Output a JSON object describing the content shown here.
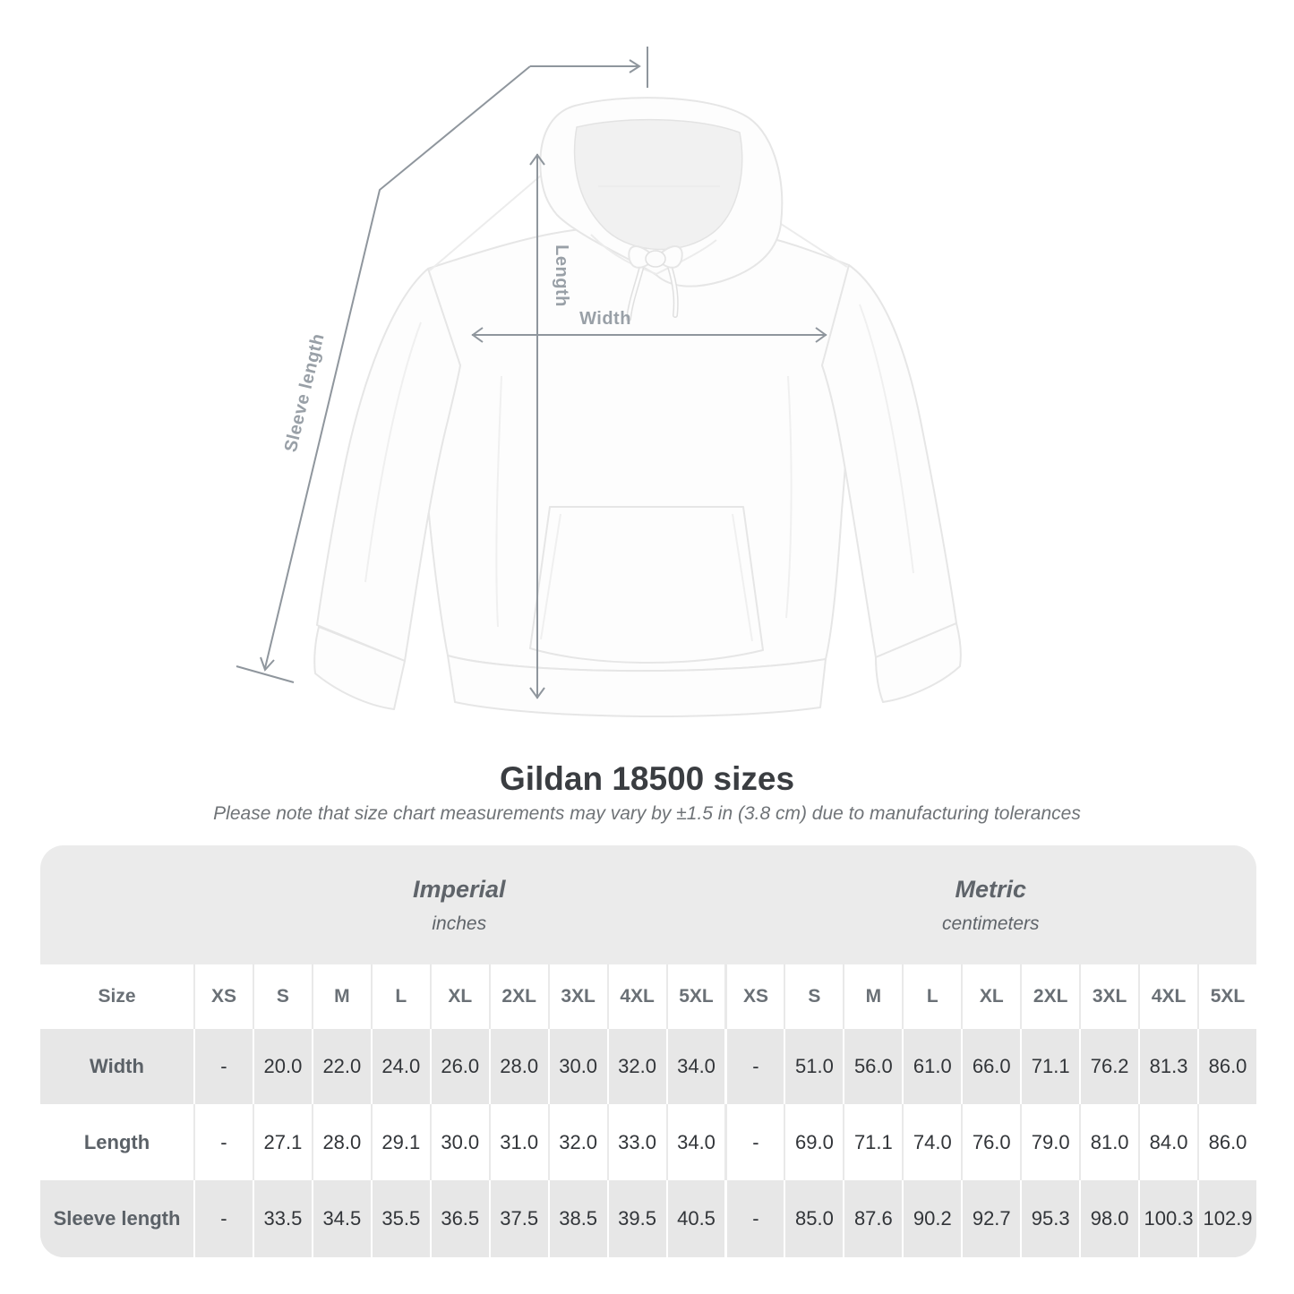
{
  "header": {
    "title": "Gildan 18500 sizes",
    "note": "Please note that size chart measurements may vary by ±1.5 in (3.8 cm) due to manufacturing tolerances"
  },
  "diagram": {
    "length_label": "Length",
    "width_label": "Width",
    "sleeve_length_label": "Sleeve length"
  },
  "table": {
    "size_label": "Size",
    "groups": [
      {
        "name": "Imperial",
        "unit": "inches"
      },
      {
        "name": "Metric",
        "unit": "centimeters"
      }
    ],
    "sizes": [
      "XS",
      "S",
      "M",
      "L",
      "XL",
      "2XL",
      "3XL",
      "4XL",
      "5XL"
    ],
    "rows": [
      {
        "label": "Width",
        "imperial": [
          "-",
          "20.0",
          "22.0",
          "24.0",
          "26.0",
          "28.0",
          "30.0",
          "32.0",
          "34.0"
        ],
        "metric": [
          "-",
          "51.0",
          "56.0",
          "61.0",
          "66.0",
          "71.1",
          "76.2",
          "81.3",
          "86.0"
        ]
      },
      {
        "label": "Length",
        "imperial": [
          "-",
          "27.1",
          "28.0",
          "29.1",
          "30.0",
          "31.0",
          "32.0",
          "33.0",
          "34.0"
        ],
        "metric": [
          "-",
          "69.0",
          "71.1",
          "74.0",
          "76.0",
          "79.0",
          "81.0",
          "84.0",
          "86.0"
        ]
      },
      {
        "label": "Sleeve length",
        "imperial": [
          "-",
          "33.5",
          "34.5",
          "35.5",
          "36.5",
          "37.5",
          "38.5",
          "39.5",
          "40.5"
        ],
        "metric": [
          "-",
          "85.0",
          "87.6",
          "90.2",
          "92.7",
          "95.3",
          "98.0",
          "100.3",
          "102.9"
        ]
      }
    ]
  },
  "colors": {
    "dimension_line": "#8f969d",
    "dimension_label": "#99a0a7",
    "table_background": "#ebebeb",
    "shaded_row": "#e7e7e7",
    "value_text": "#323539",
    "title_text": "#3a3d41"
  }
}
